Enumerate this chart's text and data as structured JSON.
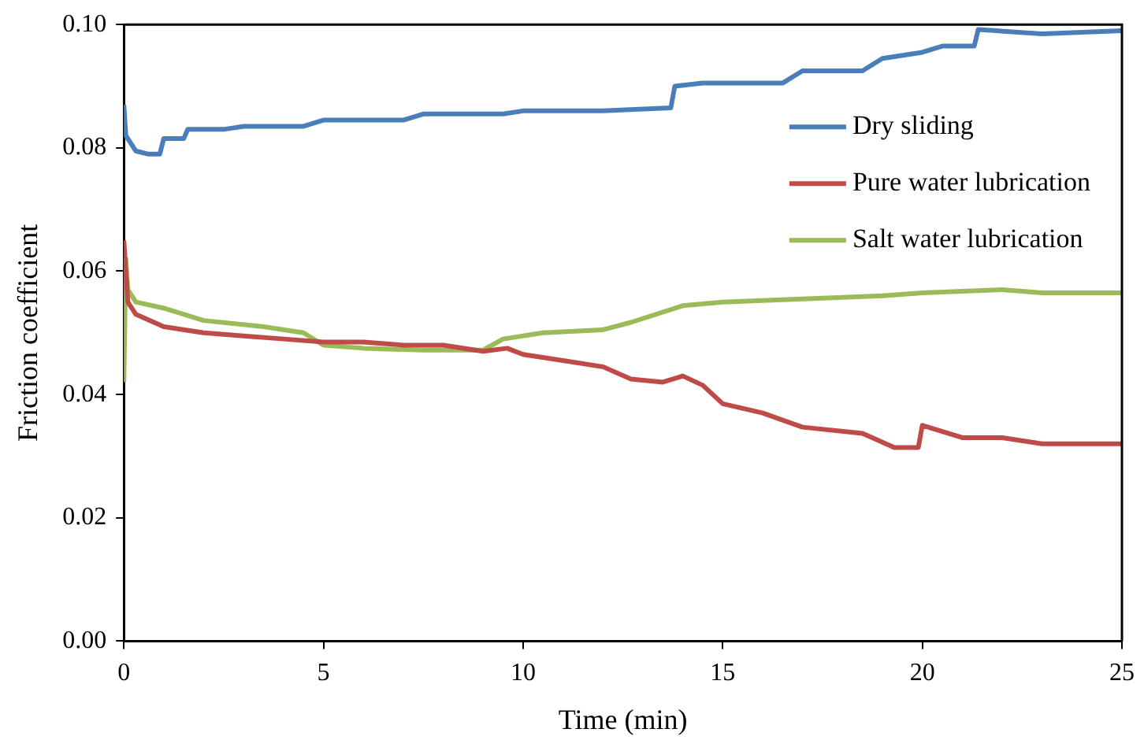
{
  "chart_data": {
    "type": "line",
    "xlabel": "Time (min)",
    "ylabel": "Friction coefficient",
    "xlim": [
      0,
      25
    ],
    "xticks": [
      0,
      5,
      10,
      15,
      20,
      25
    ],
    "ylim": [
      0,
      0.1
    ],
    "yticks": [
      {
        "value": 0,
        "label": "0.00"
      },
      {
        "value": 0.02,
        "label": "0.02"
      },
      {
        "value": 0.04,
        "label": "0.04"
      },
      {
        "value": 0.06,
        "label": "0.06"
      },
      {
        "value": 0.08,
        "label": "0.08"
      },
      {
        "value": 0.1,
        "label": "0.10"
      }
    ],
    "grid": false,
    "legend": "right",
    "marker": "none",
    "line_style": "solid",
    "series": [
      {
        "name": "Dry sliding",
        "color": "#4a7ebb",
        "x": [
          0,
          0.05,
          0.3,
          0.6,
          0.9,
          1.0,
          1.5,
          1.6,
          2.5,
          3.0,
          4.5,
          5.0,
          7.0,
          7.5,
          9.5,
          10.0,
          12.0,
          13.7,
          13.8,
          14.5,
          16.5,
          17.0,
          18.5,
          19.0,
          20.0,
          20.5,
          21.3,
          21.4,
          23,
          25
        ],
        "values": [
          0.087,
          0.082,
          0.0795,
          0.079,
          0.079,
          0.0815,
          0.0815,
          0.083,
          0.083,
          0.0835,
          0.0835,
          0.0845,
          0.0845,
          0.0855,
          0.0855,
          0.086,
          0.086,
          0.0865,
          0.09,
          0.0905,
          0.0905,
          0.0925,
          0.0925,
          0.0945,
          0.0955,
          0.0965,
          0.0965,
          0.0992,
          0.0985,
          0.099
        ]
      },
      {
        "name": "Pure water lubrication",
        "color": "#be4b48",
        "x": [
          0,
          0.1,
          0.3,
          1.0,
          2.0,
          3.0,
          4.0,
          5.0,
          6.0,
          7.0,
          8.0,
          9.0,
          9.6,
          10.0,
          11.0,
          12.0,
          12.7,
          13.5,
          14.0,
          14.5,
          15.0,
          16.0,
          17.0,
          18.5,
          19.3,
          19.9,
          20.0,
          21.0,
          22.0,
          23.0,
          25.0
        ],
        "values": [
          0.065,
          0.055,
          0.053,
          0.051,
          0.05,
          0.0495,
          0.049,
          0.0485,
          0.0485,
          0.048,
          0.048,
          0.047,
          0.0475,
          0.0465,
          0.0455,
          0.0445,
          0.0425,
          0.042,
          0.043,
          0.0415,
          0.0385,
          0.037,
          0.0347,
          0.0337,
          0.0314,
          0.0314,
          0.035,
          0.033,
          0.033,
          0.032,
          0.032
        ]
      },
      {
        "name": "Salt water lubrication",
        "color": "#9bbb59",
        "x": [
          0,
          0.05,
          0.1,
          0.3,
          1.0,
          2.0,
          3.5,
          4.5,
          5.0,
          6.0,
          7.5,
          9.0,
          9.5,
          10.5,
          12.0,
          12.7,
          14.0,
          15.0,
          17.0,
          19.0,
          20.0,
          22.0,
          23.0,
          25.0
        ],
        "values": [
          0.042,
          0.062,
          0.057,
          0.055,
          0.054,
          0.052,
          0.051,
          0.05,
          0.048,
          0.0475,
          0.0472,
          0.0472,
          0.049,
          0.05,
          0.0505,
          0.0517,
          0.0544,
          0.055,
          0.0555,
          0.056,
          0.0565,
          0.057,
          0.0565,
          0.0565
        ]
      }
    ]
  }
}
